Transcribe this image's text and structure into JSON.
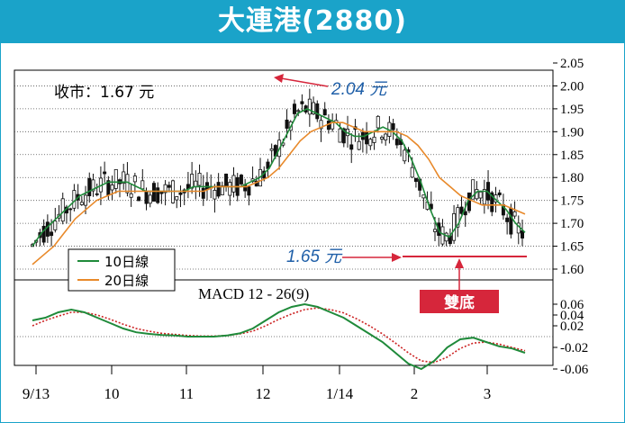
{
  "header": {
    "title": "大連港(2880)"
  },
  "annotations": {
    "close": "收市：1.67 元",
    "high": "2.04 元",
    "low": "1.65 元",
    "pattern": "雙底"
  },
  "legend": {
    "ma10": "10日線",
    "ma20": "20日線"
  },
  "macd_label": "MACD 12 - 26(9)",
  "colors": {
    "brand": "#1aa3c9",
    "ma10": "#1f8a3a",
    "ma20": "#e8892a",
    "candle": "#111111",
    "annotation": "#1f5fa8",
    "support_line": "#d6263b",
    "pattern_box": "#d6263b",
    "macd_signal": "#cc2222"
  },
  "chart_data": [
    {
      "type": "candlestick",
      "title": "大連港(2880)",
      "ylim": [
        1.6,
        2.05
      ],
      "yticks": [
        "2.05",
        "2.00",
        "1.95",
        "1.90",
        "1.85",
        "1.80",
        "1.75",
        "1.70",
        "1.65",
        "1.60"
      ],
      "xticks": [
        "9/13",
        "10",
        "11",
        "12",
        "1/14",
        "2",
        "3"
      ],
      "high_value": 2.04,
      "low_value": 1.65,
      "close_value": 1.67,
      "series": [
        {
          "name": "10日線",
          "values": [
            1.65,
            1.68,
            1.7,
            1.72,
            1.74,
            1.76,
            1.77,
            1.78,
            1.79,
            1.79,
            1.79,
            1.78,
            1.77,
            1.77,
            1.77,
            1.77,
            1.77,
            1.78,
            1.78,
            1.78,
            1.78,
            1.78,
            1.78,
            1.79,
            1.8,
            1.82,
            1.86,
            1.9,
            1.94,
            1.95,
            1.94,
            1.93,
            1.92,
            1.9,
            1.89,
            1.89,
            1.9,
            1.91,
            1.9,
            1.88,
            1.84,
            1.79,
            1.73,
            1.68,
            1.67,
            1.7,
            1.75,
            1.77,
            1.77,
            1.75,
            1.73,
            1.7,
            1.68
          ]
        },
        {
          "name": "20日線",
          "values": [
            1.61,
            1.63,
            1.65,
            1.68,
            1.71,
            1.73,
            1.75,
            1.76,
            1.77,
            1.77,
            1.77,
            1.77,
            1.77,
            1.77,
            1.77,
            1.77,
            1.77,
            1.78,
            1.78,
            1.78,
            1.78,
            1.79,
            1.8,
            1.82,
            1.85,
            1.88,
            1.9,
            1.91,
            1.92,
            1.92,
            1.91,
            1.9,
            1.9,
            1.9,
            1.9,
            1.89,
            1.87,
            1.84,
            1.8,
            1.78,
            1.76,
            1.75,
            1.74,
            1.74,
            1.74,
            1.73,
            1.72
          ]
        }
      ]
    },
    {
      "type": "line",
      "title": "MACD 12 - 26(9)",
      "ylim": [
        -0.07,
        0.07
      ],
      "yticks": [
        "0.06",
        "0.04",
        "0.02",
        "-0.02",
        "-0.06"
      ],
      "series": [
        {
          "name": "MACD",
          "values": [
            0.03,
            0.035,
            0.045,
            0.05,
            0.045,
            0.035,
            0.025,
            0.015,
            0.008,
            0.005,
            0.003,
            0.002,
            0.0,
            0.0,
            0.0,
            0.002,
            0.006,
            0.015,
            0.03,
            0.045,
            0.055,
            0.06,
            0.055,
            0.045,
            0.035,
            0.02,
            0.005,
            -0.01,
            -0.03,
            -0.05,
            -0.06,
            -0.045,
            -0.02,
            -0.005,
            -0.002,
            -0.01,
            -0.018,
            -0.022,
            -0.03
          ]
        },
        {
          "name": "Signal",
          "values": [
            0.02,
            0.03,
            0.038,
            0.045,
            0.045,
            0.04,
            0.032,
            0.023,
            0.015,
            0.01,
            0.006,
            0.004,
            0.002,
            0.001,
            0.001,
            0.002,
            0.005,
            0.01,
            0.02,
            0.032,
            0.042,
            0.05,
            0.053,
            0.05,
            0.044,
            0.033,
            0.02,
            0.005,
            -0.012,
            -0.03,
            -0.045,
            -0.048,
            -0.038,
            -0.022,
            -0.012,
            -0.01,
            -0.014,
            -0.02,
            -0.026
          ]
        }
      ]
    }
  ]
}
